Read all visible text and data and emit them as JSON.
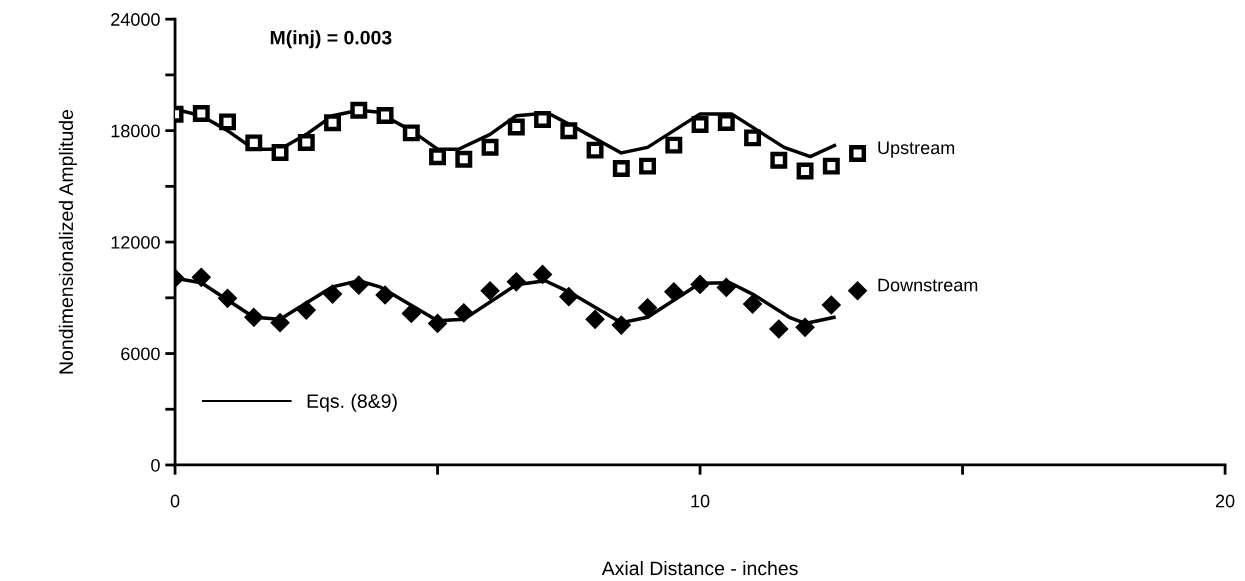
{
  "chart_data": {
    "type": "scatter",
    "xlabel": "Axial Distance - inches",
    "ylabel": "Nondimensionalized Amplitude",
    "annotations": [
      "M(inj) = 0.003"
    ],
    "xlim": [
      0,
      20
    ],
    "ylim": [
      0,
      24000
    ],
    "xticks": [
      0,
      {
        "value": 5,
        "label": null
      },
      10,
      {
        "value": 15,
        "label": null
      },
      20
    ],
    "yticks": [
      0,
      {
        "value": 3000,
        "label": null
      },
      6000,
      {
        "value": 9000,
        "label": null
      },
      12000,
      {
        "value": 15000,
        "label": null
      },
      18000,
      {
        "value": 21000,
        "label": null
      },
      24000
    ],
    "grid": false,
    "legend": "bottom left",
    "series": [
      {
        "name": "Upstream",
        "marker": "square",
        "color": "#000000",
        "x": [
          0,
          0.5,
          1,
          1.5,
          2,
          2.5,
          3,
          3.5,
          4,
          4.5,
          5,
          5.5,
          6,
          6.5,
          7,
          7.5,
          8,
          8.5,
          9,
          9.5,
          10,
          10.5,
          11,
          11.5,
          12,
          12.5,
          13
        ],
        "values": [
          18880,
          18920,
          18470,
          17340,
          16820,
          17360,
          18420,
          19100,
          18810,
          17880,
          16590,
          16460,
          17100,
          18200,
          18600,
          17990,
          16950,
          15960,
          16090,
          17220,
          18330,
          18440,
          17610,
          16410,
          15830,
          16090,
          16770
        ]
      },
      {
        "name": "Downstream",
        "marker": "diamond",
        "color": "#000000",
        "x": [
          0,
          0.5,
          1,
          1.5,
          2,
          2.5,
          3,
          3.5,
          4,
          4.5,
          5,
          5.5,
          6,
          6.5,
          7,
          7.5,
          8,
          8.5,
          9,
          9.5,
          10,
          10.5,
          11,
          11.5,
          12,
          12.5,
          13
        ],
        "values": [
          10050,
          10100,
          8970,
          7950,
          7660,
          8340,
          9200,
          9680,
          9150,
          8160,
          7620,
          8190,
          9380,
          9860,
          10260,
          9060,
          7840,
          7530,
          8460,
          9320,
          9720,
          9560,
          8660,
          7320,
          7410,
          8610,
          9380
        ]
      },
      {
        "name": "Eqs. (8&9)",
        "type": "line",
        "marker": "none",
        "line_style": "solid",
        "color": "#000000",
        "x": [
          0,
          0.5,
          1.0,
          1.5,
          2.0,
          2.5,
          3.0,
          3.5,
          3.85,
          4.5,
          5.0,
          5.4,
          6.0,
          6.5,
          7.1,
          7.6,
          8.5,
          9.0,
          10.0,
          10.6,
          11.6,
          12.1,
          12.56
        ],
        "values": [
          19150,
          18800,
          18000,
          17000,
          17000,
          17800,
          18800,
          19100,
          19000,
          18000,
          17000,
          17000,
          17800,
          18800,
          18950,
          18200,
          16800,
          17100,
          18900,
          18900,
          17100,
          16600,
          17200
        ]
      },
      {
        "type": "line",
        "marker": "none",
        "line_style": "solid",
        "color": "#000000",
        "x": [
          0,
          0.5,
          1.5,
          2.0,
          3.0,
          3.5,
          3.9,
          5.0,
          5.5,
          6.5,
          7.05,
          7.5,
          8.5,
          9.0,
          10.0,
          10.57,
          11.0,
          11.7,
          12.0,
          12.55
        ],
        "values": [
          10050,
          9810,
          7950,
          7840,
          9590,
          9920,
          9590,
          7760,
          7840,
          9700,
          9920,
          9320,
          7660,
          7950,
          9780,
          9810,
          9200,
          7950,
          7620,
          7950
        ]
      }
    ]
  }
}
